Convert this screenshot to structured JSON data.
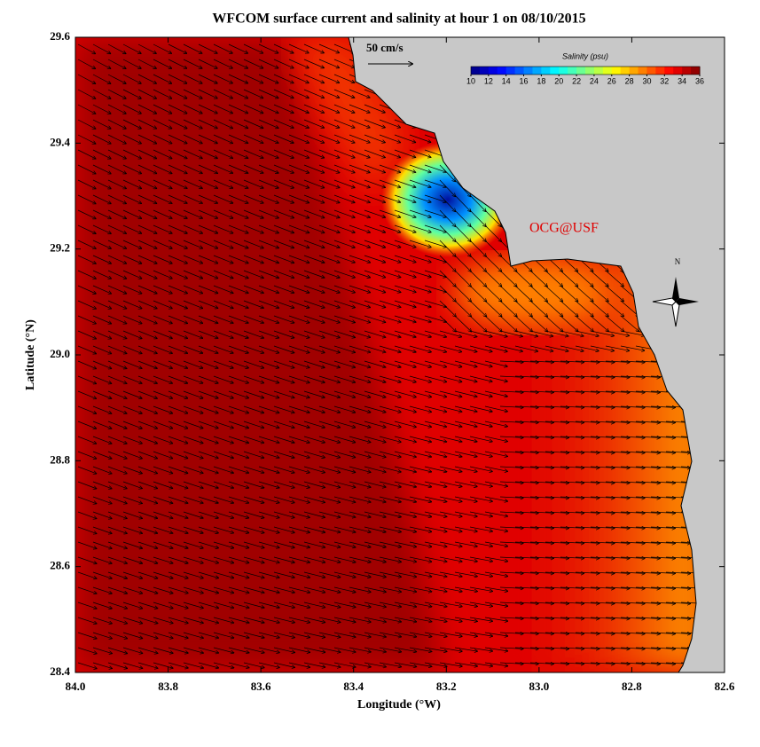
{
  "chart_data": {
    "type": "map",
    "title": "WFCOM surface current and salinity at hour 1 on 08/10/2015",
    "x_label": "Longitude (°W)",
    "y_label": "Latitude (°N)",
    "xlim": [
      84.0,
      82.6
    ],
    "ylim": [
      28.4,
      29.6
    ],
    "xticks": [
      {
        "value": 84.0,
        "label": "84.0"
      },
      83.8,
      83.6,
      83.4,
      83.2,
      {
        "value": 83.0,
        "label": "83.0"
      },
      82.8,
      82.6
    ],
    "yticks": [
      28.4,
      28.6,
      28.8,
      {
        "value": 29.0,
        "label": "29.0"
      },
      29.2,
      29.4,
      29.6
    ],
    "colorbar": {
      "title": "Salinity (psu)",
      "clim": [
        10,
        36
      ],
      "ticks": [
        10,
        12,
        14,
        16,
        18,
        20,
        22,
        24,
        26,
        28,
        30,
        32,
        34,
        36
      ]
    },
    "scale_label": "50 cm/s",
    "watermark": "OCG@USF",
    "compass_label": "N"
  }
}
